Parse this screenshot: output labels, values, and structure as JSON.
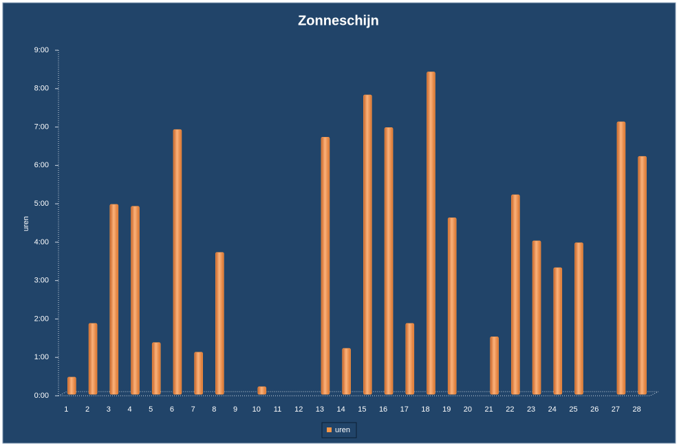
{
  "chart_data": {
    "type": "bar",
    "title": "Zonneschijn",
    "y_label": "uren",
    "categories": [
      "1",
      "2",
      "3",
      "4",
      "5",
      "6",
      "7",
      "8",
      "9",
      "10",
      "11",
      "12",
      "13",
      "14",
      "15",
      "16",
      "17",
      "18",
      "19",
      "20",
      "21",
      "22",
      "23",
      "24",
      "25",
      "26",
      "27",
      "28"
    ],
    "series": [
      {
        "name": "uren",
        "color": "#f79646",
        "values": [
          0.45,
          1.85,
          4.95,
          4.9,
          1.35,
          6.9,
          1.1,
          3.7,
          0,
          0.2,
          0,
          0,
          6.7,
          1.2,
          7.8,
          6.95,
          1.85,
          8.4,
          4.6,
          0,
          1.5,
          5.2,
          4.0,
          3.3,
          3.95,
          0,
          7.1,
          6.2
        ]
      }
    ],
    "ylim": [
      0,
      9
    ],
    "yticks": [
      {
        "value": 0,
        "label": "0:00"
      },
      {
        "value": 1,
        "label": "1:00"
      },
      {
        "value": 2,
        "label": "2:00"
      },
      {
        "value": 3,
        "label": "3:00"
      },
      {
        "value": 4,
        "label": "4:00"
      },
      {
        "value": 5,
        "label": "5:00"
      },
      {
        "value": 6,
        "label": "6:00"
      },
      {
        "value": 7,
        "label": "7:00"
      },
      {
        "value": 8,
        "label": "8:00"
      },
      {
        "value": 9,
        "label": "9:00"
      }
    ],
    "grid": false,
    "legend": "bottom"
  }
}
